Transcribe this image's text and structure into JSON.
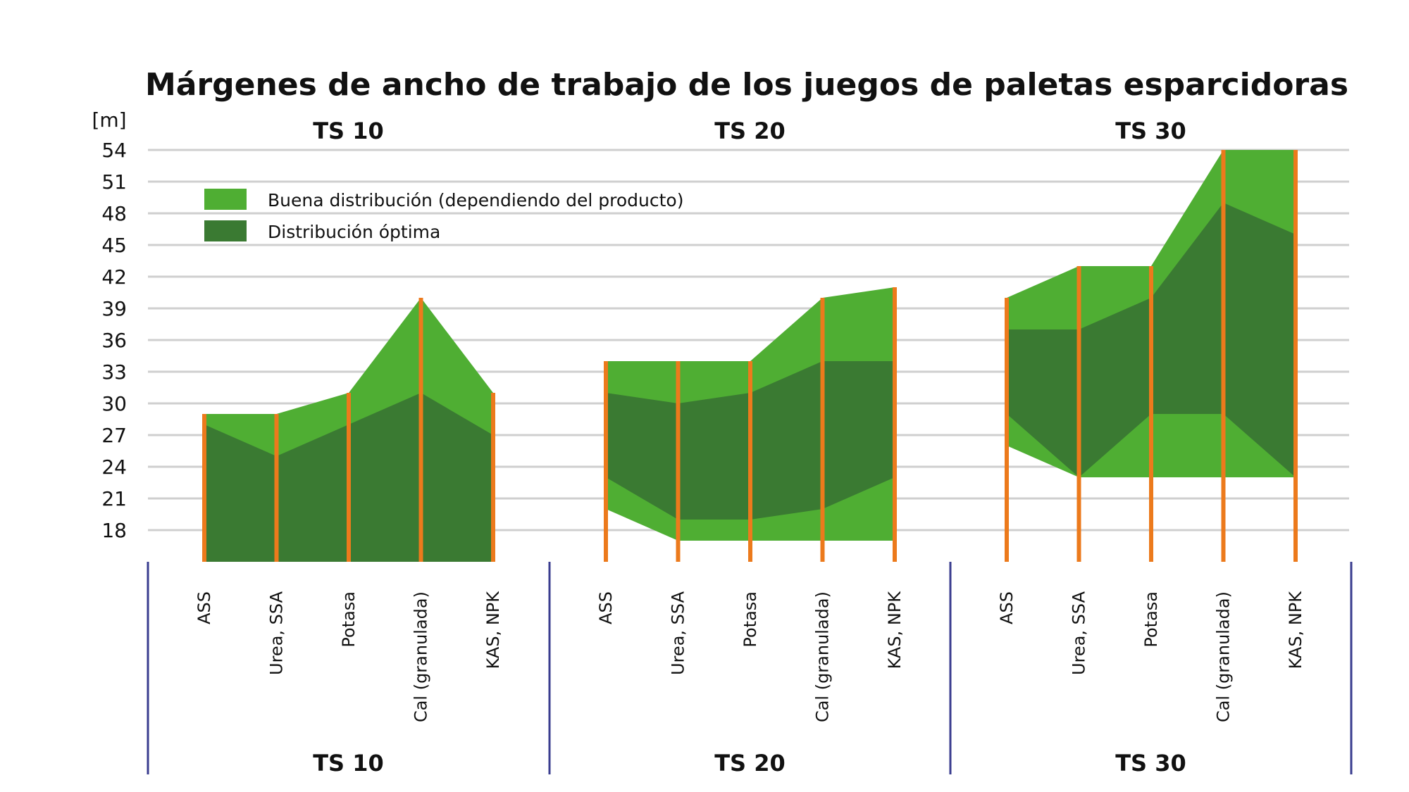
{
  "chart_data": {
    "type": "area",
    "title": "Márgenes de ancho de trabajo de los juegos de paletas esparcidoras",
    "y_unit_label": "[m]",
    "ylim": [
      15,
      54
    ],
    "y_ticks": [
      18,
      21,
      24,
      27,
      30,
      33,
      36,
      39,
      42,
      45,
      48,
      51,
      54
    ],
    "grid": true,
    "legend_position": "top-left",
    "colors": {
      "good": "#4fae33",
      "optimal": "#3a7a32",
      "marker": "#ec7a1c",
      "separator": "#3a3d8f",
      "grid": "#cfcfcf"
    },
    "legend": [
      {
        "key": "good",
        "label": "Buena distribución (dependiendo del producto)"
      },
      {
        "key": "optimal",
        "label": "Distribución óptima"
      }
    ],
    "categories": [
      "ASS",
      "Urea, SSA",
      "Potasa",
      "Cal (granulada)",
      "KAS, NPK"
    ],
    "panels": [
      {
        "name": "TS 10",
        "good": {
          "low": [
            15,
            15,
            15,
            15,
            15
          ],
          "high": [
            29,
            29,
            31,
            40,
            31
          ]
        },
        "optimal": {
          "low": [
            15,
            15,
            15,
            15,
            15
          ],
          "high": [
            28,
            25,
            28,
            31,
            27
          ]
        }
      },
      {
        "name": "TS 20",
        "good": {
          "low": [
            20,
            17,
            17,
            17,
            17
          ],
          "high": [
            34,
            34,
            34,
            40,
            41
          ]
        },
        "optimal": {
          "low": [
            23,
            19,
            19,
            20,
            23
          ],
          "high": [
            31,
            30,
            31,
            34,
            34
          ]
        }
      },
      {
        "name": "TS 30",
        "good": {
          "low": [
            26,
            23,
            23,
            23,
            23
          ],
          "high": [
            40,
            43,
            43,
            54,
            54
          ]
        },
        "optimal": {
          "low": [
            29,
            23,
            29,
            29,
            23
          ],
          "high": [
            37,
            37,
            40,
            49,
            46
          ]
        }
      }
    ]
  }
}
